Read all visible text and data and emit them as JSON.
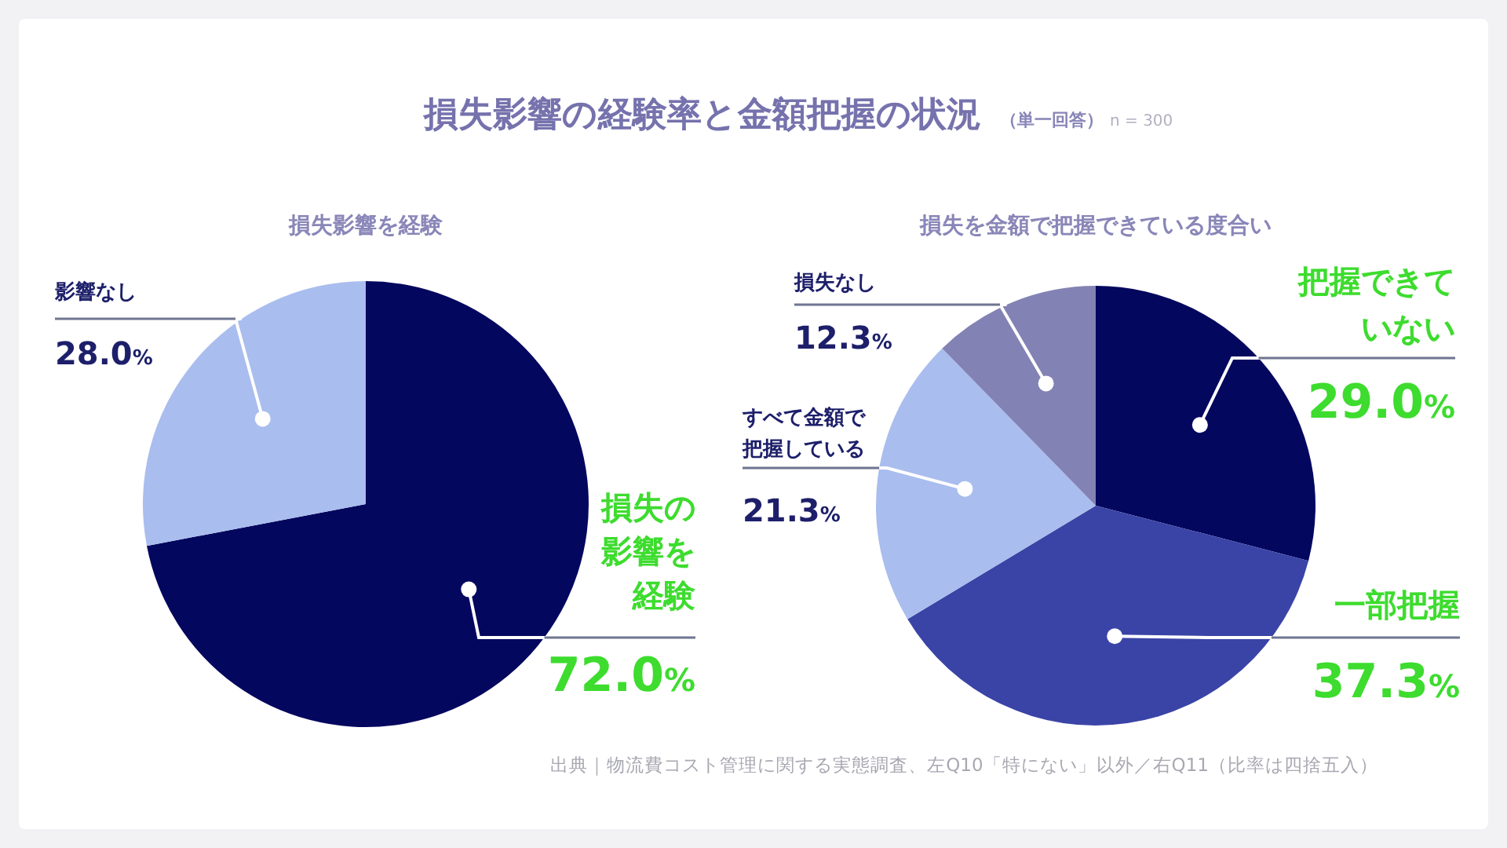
{
  "chart_data": [
    {
      "type": "pie",
      "title": "損失影響を経験",
      "categories": [
        "損失の影響を経験",
        "影響なし"
      ],
      "values": [
        72.0,
        28.0
      ],
      "colors": [
        "#04075e",
        "#a9bdee"
      ],
      "value_labels": [
        "72.0%",
        "28.0%"
      ],
      "annotations": [
        "損失影響の経験率と金額把握の状況",
        "（単一回答）",
        "n = 300",
        "出典｜物流費コスト管理に関する実態調査、左Q10「特にない」以外／右Q11（比率は四捨五入）"
      ]
    },
    {
      "type": "pie",
      "title": "損失を金額で把握できている度合い",
      "categories": [
        "把握できていない",
        "一部把握",
        "すべて金額で把握している",
        "損失なし"
      ],
      "values": [
        29.0,
        37.3,
        21.3,
        12.3
      ],
      "colors": [
        "#04075e",
        "#3a44a6",
        "#a9bdee",
        "#8382b4"
      ],
      "value_labels": [
        "29.0%",
        "37.3%",
        "21.3%",
        "12.3%"
      ]
    }
  ]
}
